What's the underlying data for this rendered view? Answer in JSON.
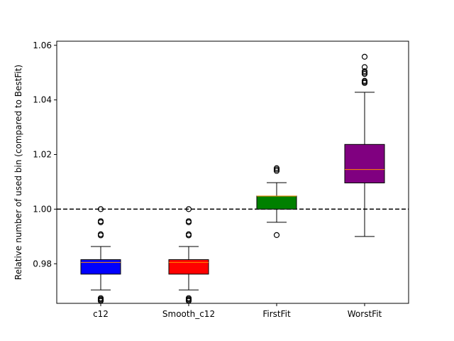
{
  "chart_data": {
    "type": "box",
    "title": "",
    "xlabel": "",
    "ylabel": "Relative number of used bin (compared to BestFit)",
    "categories": [
      "c12",
      "Smooth_c12",
      "FirstFit",
      "WorstFit"
    ],
    "ylim": [
      0.9655,
      1.0615
    ],
    "yticks": [
      0.98,
      1.0,
      1.02,
      1.04,
      1.06
    ],
    "ytick_labels": [
      "0.98",
      "1.00",
      "1.02",
      "1.04",
      "1.06"
    ],
    "grid": false,
    "reference_line": {
      "y": 1.0,
      "style": "dashed",
      "color": "#000000"
    },
    "boxes": [
      {
        "name": "c12",
        "color": "#0000ff",
        "whisker_low": 0.9704,
        "q1": 0.9762,
        "median": 0.9805,
        "q3": 0.9815,
        "whisker_high": 0.9863,
        "outliers": [
          0.9664,
          0.9666,
          0.967,
          0.9674,
          0.9904,
          0.9908,
          0.9952,
          0.9956,
          1.0
        ]
      },
      {
        "name": "Smooth_c12",
        "color": "#ff0000",
        "whisker_low": 0.9704,
        "q1": 0.9762,
        "median": 0.9805,
        "q3": 0.9815,
        "whisker_high": 0.9863,
        "outliers": [
          0.9664,
          0.9666,
          0.967,
          0.9674,
          0.9904,
          0.9908,
          0.9952,
          0.9956,
          1.0
        ]
      },
      {
        "name": "FirstFit",
        "color": "#008000",
        "whisker_low": 0.9952,
        "q1": 1.0,
        "median": 1.0048,
        "q3": 1.0048,
        "whisker_high": 1.0097,
        "outliers": [
          0.9905,
          1.014,
          1.0145,
          1.015
        ]
      },
      {
        "name": "WorstFit",
        "color": "#800080",
        "whisker_low": 0.99,
        "q1": 1.0096,
        "median": 1.0145,
        "q3": 1.0237,
        "whisker_high": 1.0428,
        "outliers": [
          1.0462,
          1.0466,
          1.047,
          1.0495,
          1.05,
          1.0505,
          1.052,
          1.0558
        ]
      }
    ],
    "median_color": "#ff8c00"
  }
}
